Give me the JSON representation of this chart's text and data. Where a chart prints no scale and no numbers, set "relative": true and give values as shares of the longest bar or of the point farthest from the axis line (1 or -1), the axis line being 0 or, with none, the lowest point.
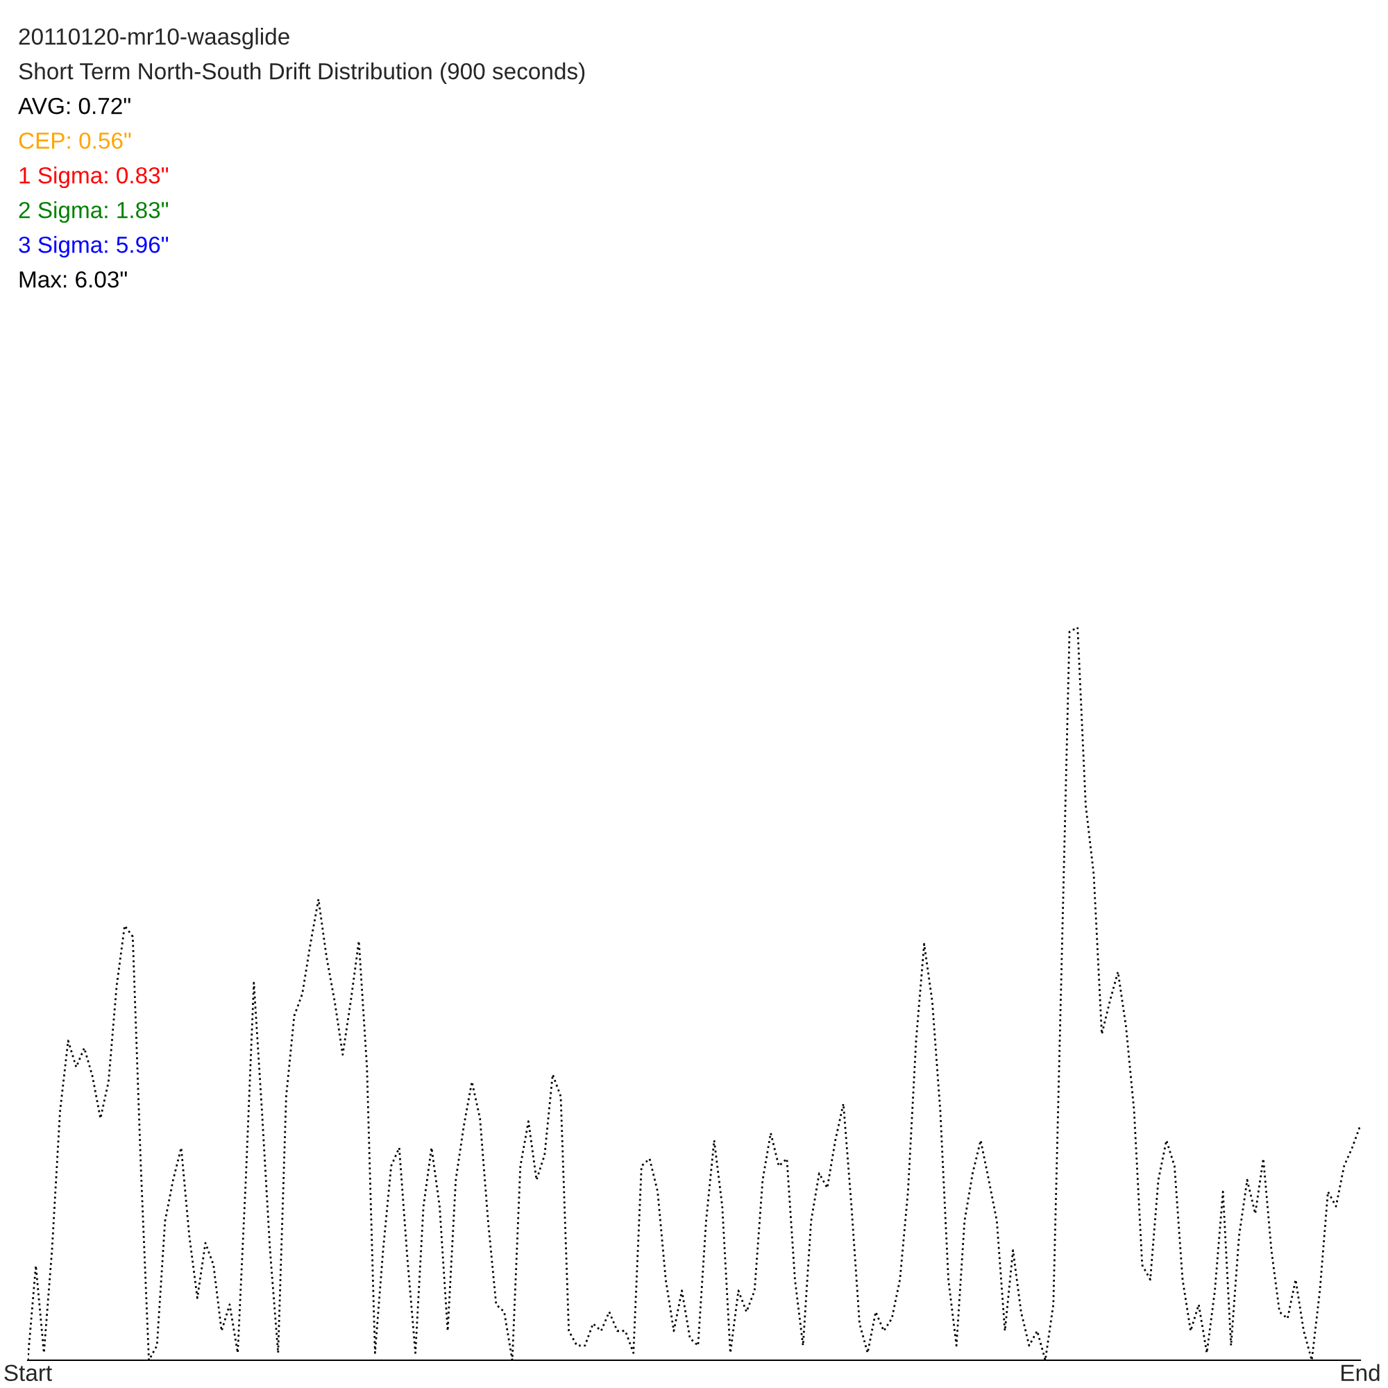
{
  "chart_data": {
    "type": "line",
    "relative": true,
    "title": "20110120-mr10-waasglide",
    "subtitle": "Short Term North-South Drift Distribution (900 seconds)",
    "annotations": [
      "AVG: 0.72\"",
      "CEP: 0.56\"",
      "1 Sigma: 0.83\"",
      "2 Sigma: 1.83\"",
      "3 Sigma: 5.96\"",
      "Max: 6.03\""
    ],
    "categories": [
      "Start",
      null,
      null,
      null,
      null,
      null,
      null,
      null,
      null,
      null,
      null,
      null,
      null,
      null,
      null,
      null,
      null,
      null,
      null,
      null,
      null,
      null,
      null,
      null,
      null,
      null,
      null,
      null,
      null,
      null,
      null,
      null,
      null,
      null,
      null,
      null,
      null,
      null,
      null,
      null,
      null,
      null,
      null,
      null,
      null,
      null,
      null,
      null,
      null,
      null,
      null,
      null,
      null,
      null,
      null,
      null,
      null,
      null,
      null,
      null,
      null,
      null,
      null,
      null,
      null,
      null,
      null,
      null,
      null,
      null,
      null,
      null,
      null,
      null,
      null,
      null,
      null,
      null,
      null,
      null,
      null,
      null,
      null,
      null,
      null,
      null,
      null,
      null,
      null,
      null,
      null,
      null,
      null,
      null,
      null,
      null,
      null,
      null,
      null,
      null,
      null,
      null,
      null,
      null,
      null,
      null,
      null,
      null,
      null,
      null,
      null,
      null,
      null,
      null,
      null,
      null,
      null,
      null,
      null,
      null,
      null,
      null,
      null,
      null,
      null,
      null,
      null,
      null,
      null,
      null,
      null,
      null,
      null,
      null,
      null,
      null,
      null,
      null,
      null,
      null,
      null,
      null,
      null,
      null,
      null,
      null,
      null,
      null,
      null,
      null,
      null,
      null,
      null,
      null,
      null,
      null,
      null,
      null,
      null,
      null,
      null,
      null,
      null,
      null,
      null,
      "End"
    ],
    "series": [
      {
        "color": "#000000",
        "values": [
          0,
          0.129,
          0.01,
          0.15,
          0.34,
          0.436,
          0.4,
          0.426,
          0.388,
          0.33,
          0.38,
          0.51,
          0.593,
          0.578,
          0.265,
          0,
          0.02,
          0.19,
          0.246,
          0.29,
          0.17,
          0.085,
          0.16,
          0.13,
          0.04,
          0.076,
          0.01,
          0.246,
          0.515,
          0.34,
          0.15,
          0.01,
          0.36,
          0.47,
          0.5,
          0.568,
          0.629,
          0.55,
          0.49,
          0.417,
          0.49,
          0.572,
          0.4,
          0.01,
          0.15,
          0.265,
          0.29,
          0.14,
          0.01,
          0.21,
          0.29,
          0.21,
          0.04,
          0.246,
          0.32,
          0.38,
          0.33,
          0.19,
          0.076,
          0.066,
          0,
          0.265,
          0.326,
          0.246,
          0.28,
          0.39,
          0.36,
          0.04,
          0.02,
          0.02,
          0.05,
          0.04,
          0.066,
          0.04,
          0.04,
          0.01,
          0.265,
          0.275,
          0.23,
          0.11,
          0.04,
          0.095,
          0.03,
          0.02,
          0.19,
          0.3,
          0.21,
          0.01,
          0.095,
          0.066,
          0.095,
          0.246,
          0.31,
          0.265,
          0.275,
          0.11,
          0.02,
          0.19,
          0.255,
          0.235,
          0.3,
          0.35,
          0.21,
          0.05,
          0.01,
          0.066,
          0.04,
          0.057,
          0.11,
          0.23,
          0.436,
          0.568,
          0.49,
          0.34,
          0.11,
          0.02,
          0.19,
          0.255,
          0.3,
          0.246,
          0.19,
          0.04,
          0.15,
          0.066,
          0.02,
          0.04,
          0,
          0.076,
          0.53,
          0.994,
          1,
          0.758,
          0.663,
          0.445,
          0.49,
          0.53,
          0.455,
          0.34,
          0.13,
          0.11,
          0.246,
          0.3,
          0.265,
          0.11,
          0.04,
          0.076,
          0.01,
          0.095,
          0.23,
          0.02,
          0.17,
          0.246,
          0.2,
          0.275,
          0.15,
          0.066,
          0.057,
          0.11,
          0.04,
          0,
          0.095,
          0.23,
          0.21,
          0.265,
          0.29,
          0.32
        ]
      }
    ],
    "line_style": "dotted",
    "marker": "none",
    "grid": false,
    "legend": false
  }
}
